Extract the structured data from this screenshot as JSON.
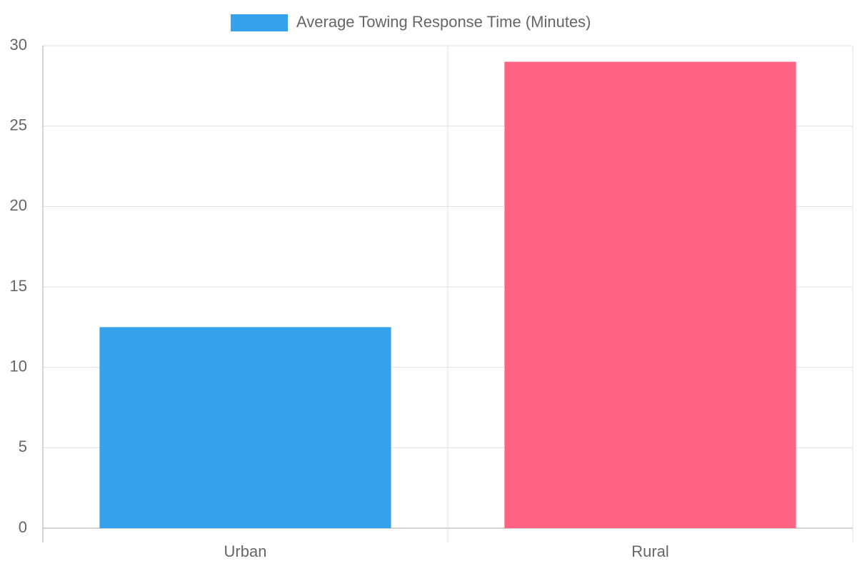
{
  "chart_data": {
    "type": "bar",
    "categories": [
      "Urban",
      "Rural"
    ],
    "series": [
      {
        "name": "Average Towing Response Time (Minutes)",
        "colors": [
          "#36a2eb",
          "#ff6384"
        ],
        "values": [
          12.5,
          29
        ]
      }
    ],
    "ylim": [
      0,
      30
    ],
    "yticks": [
      0,
      5,
      10,
      15,
      20,
      25,
      30
    ],
    "grid": true,
    "legend": "top"
  }
}
